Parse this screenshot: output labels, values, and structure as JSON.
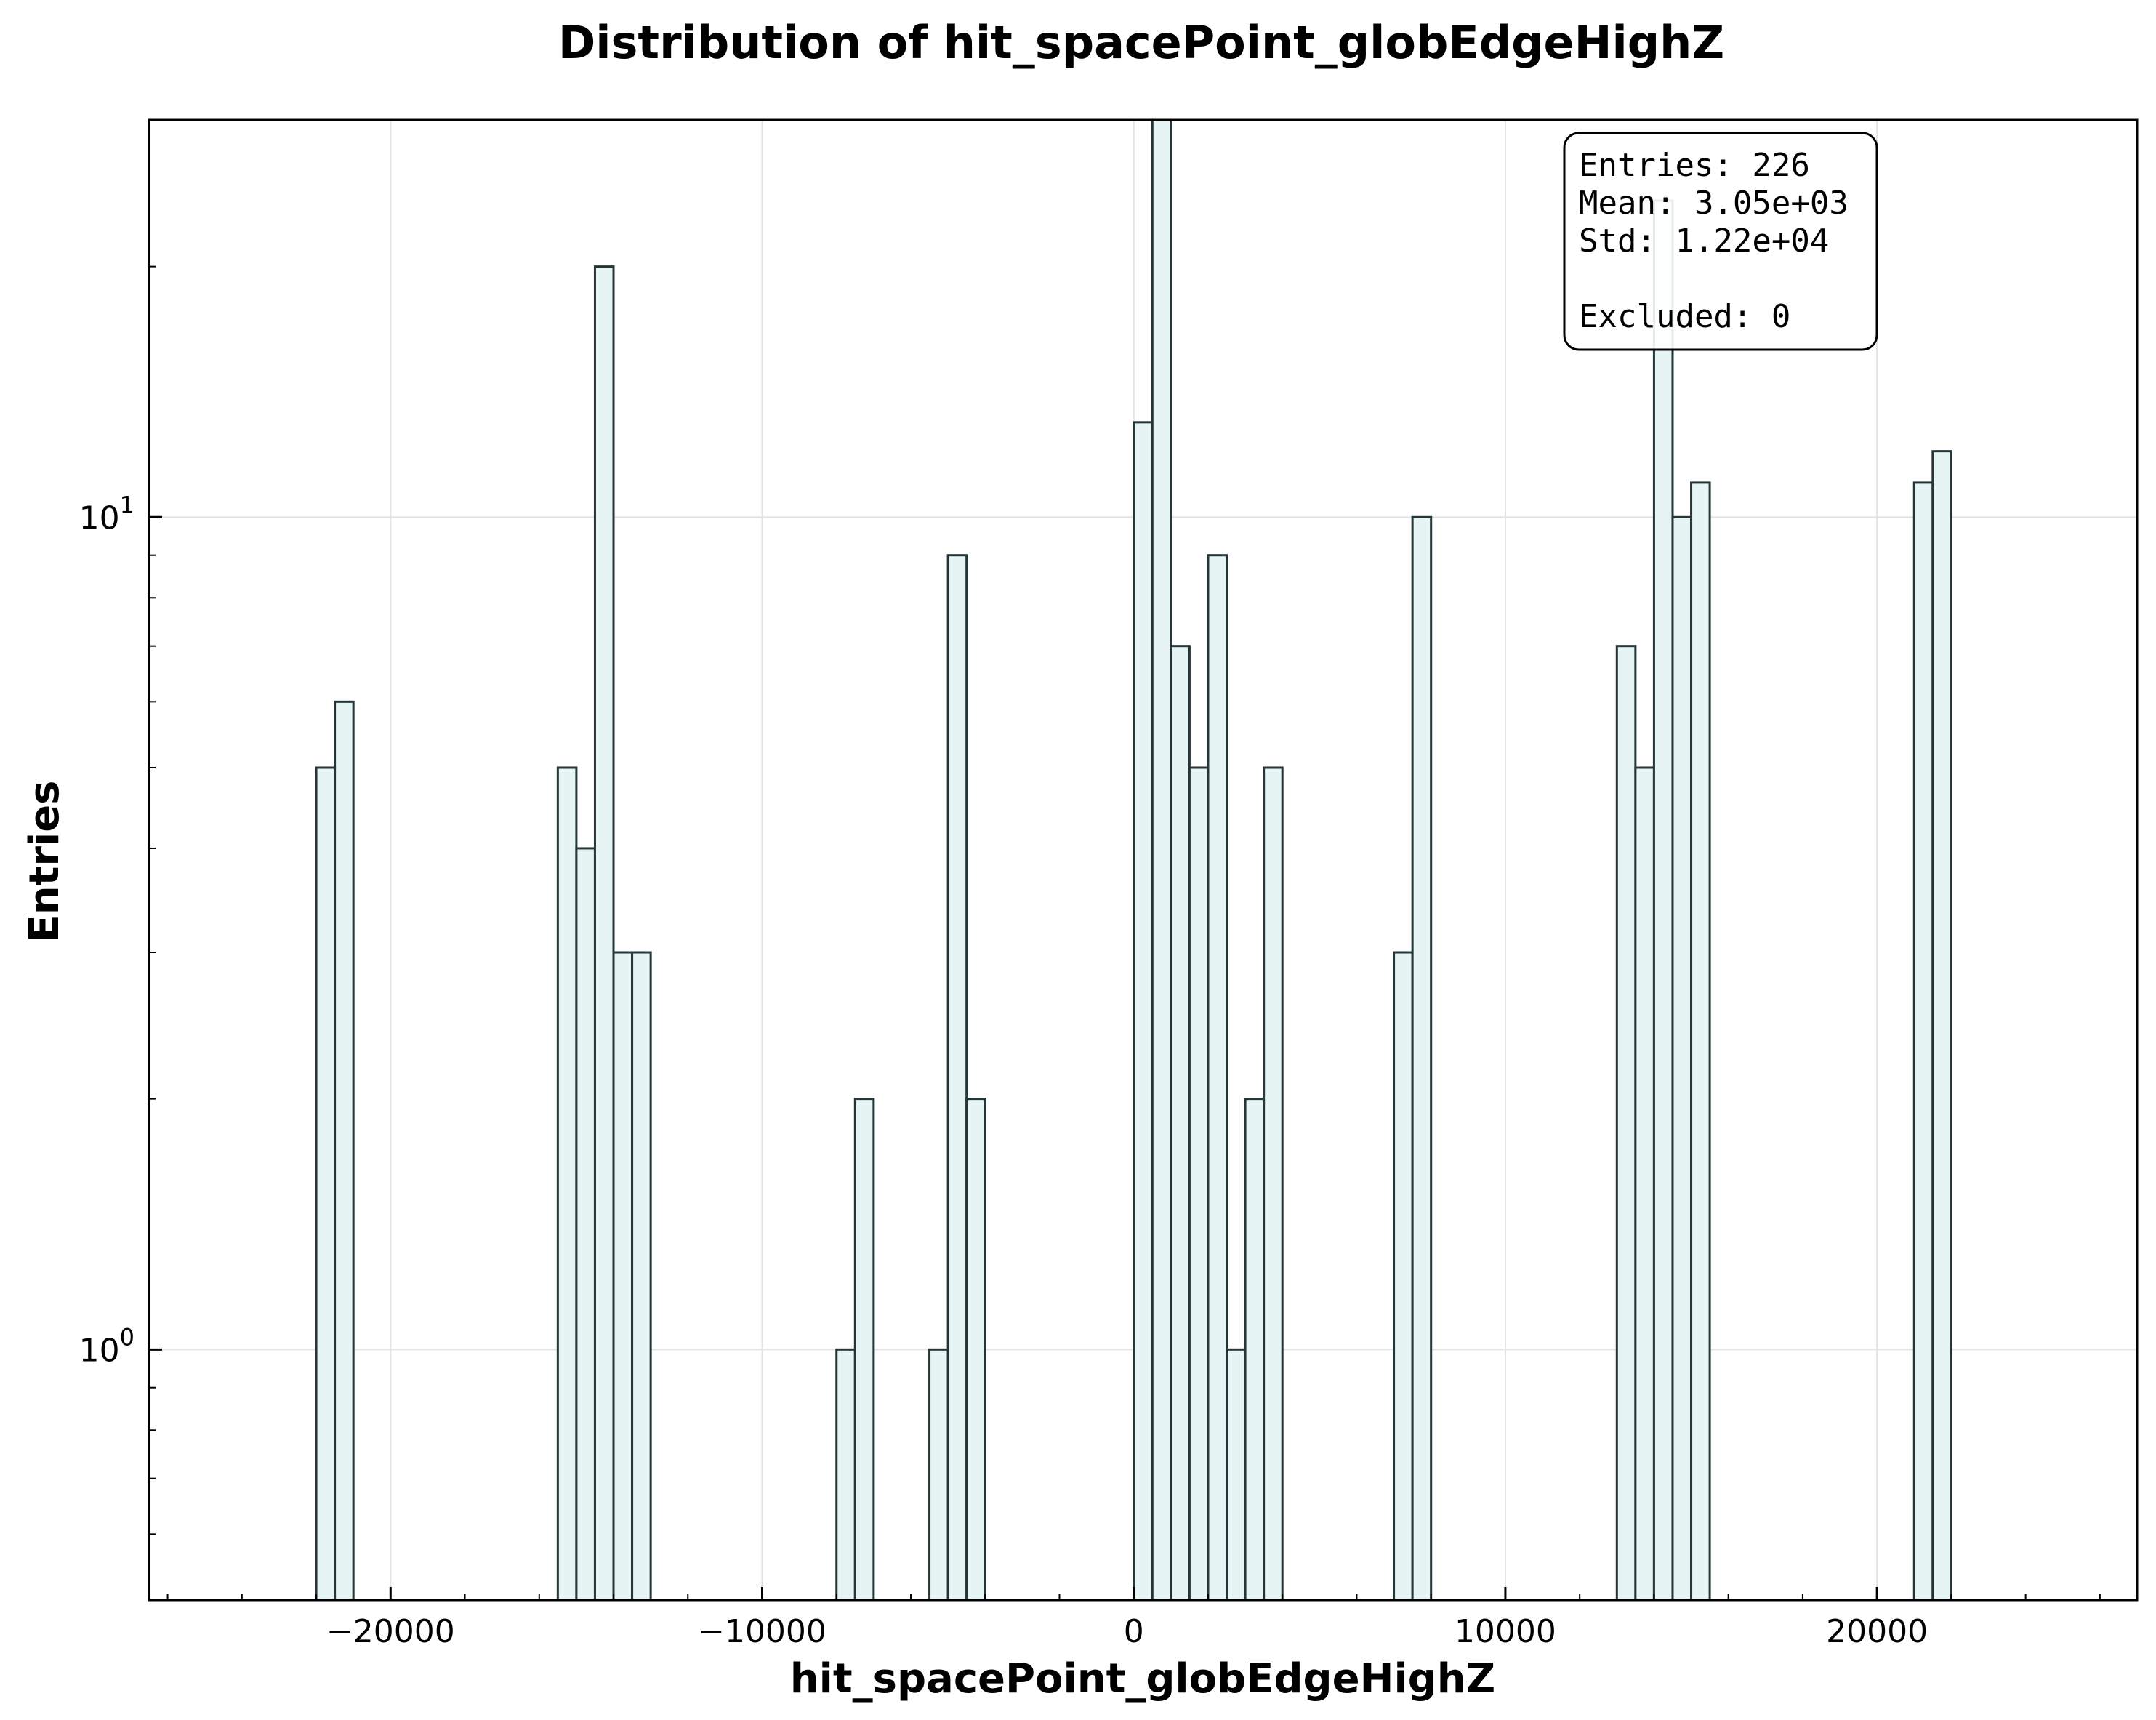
{
  "chart_data": {
    "type": "bar",
    "title": "Distribution of hit_spacePoint_globEdgeHighZ",
    "xlabel": "hit_spacePoint_globEdgeHighZ",
    "ylabel": "Entries",
    "y_scale": "log",
    "xlim": [
      -26500,
      27000
    ],
    "ylim": [
      0.5,
      30
    ],
    "x_ticks": [
      {
        "value": -20000,
        "label": "−20000"
      },
      {
        "value": -10000,
        "label": "−10000"
      },
      {
        "value": 0,
        "label": "0"
      },
      {
        "value": 10000,
        "label": "10000"
      },
      {
        "value": 20000,
        "label": "20000"
      }
    ],
    "y_ticks": [
      {
        "value": 1,
        "base": "10",
        "exp": "0"
      },
      {
        "value": 10,
        "base": "10",
        "exp": "1"
      }
    ],
    "grid": true,
    "bar_color": "#e6f4f4",
    "edge_color": "#243638",
    "bins": [
      {
        "x0": -22000,
        "x1": -21500,
        "count": 5
      },
      {
        "x0": -21500,
        "x1": -21000,
        "count": 6
      },
      {
        "x0": -15500,
        "x1": -15000,
        "count": 5
      },
      {
        "x0": -15000,
        "x1": -14500,
        "count": 4
      },
      {
        "x0": -14500,
        "x1": -14000,
        "count": 20
      },
      {
        "x0": -14000,
        "x1": -13500,
        "count": 3
      },
      {
        "x0": -13500,
        "x1": -13000,
        "count": 3
      },
      {
        "x0": -8000,
        "x1": -7500,
        "count": 1
      },
      {
        "x0": -7500,
        "x1": -7000,
        "count": 2
      },
      {
        "x0": -5500,
        "x1": -5000,
        "count": 1
      },
      {
        "x0": -5000,
        "x1": -4500,
        "count": 9
      },
      {
        "x0": -4500,
        "x1": -4000,
        "count": 2
      },
      {
        "x0": 0,
        "x1": 500,
        "count": 13
      },
      {
        "x0": 500,
        "x1": 1000,
        "count": 30
      },
      {
        "x0": 1000,
        "x1": 1500,
        "count": 7
      },
      {
        "x0": 1500,
        "x1": 2000,
        "count": 5
      },
      {
        "x0": 2000,
        "x1": 2500,
        "count": 9
      },
      {
        "x0": 2500,
        "x1": 3000,
        "count": 1
      },
      {
        "x0": 3000,
        "x1": 3500,
        "count": 2
      },
      {
        "x0": 3500,
        "x1": 4000,
        "count": 5
      },
      {
        "x0": 7000,
        "x1": 7500,
        "count": 3
      },
      {
        "x0": 7500,
        "x1": 8000,
        "count": 10
      },
      {
        "x0": 13000,
        "x1": 13500,
        "count": 7
      },
      {
        "x0": 13500,
        "x1": 14000,
        "count": 5
      },
      {
        "x0": 14000,
        "x1": 14500,
        "count": 24
      },
      {
        "x0": 14500,
        "x1": 15000,
        "count": 10
      },
      {
        "x0": 15000,
        "x1": 15500,
        "count": 11
      },
      {
        "x0": 21000,
        "x1": 21500,
        "count": 11
      },
      {
        "x0": 21500,
        "x1": 22000,
        "count": 12
      }
    ],
    "stats_box": {
      "placement": "top-right",
      "lines": [
        "Entries: 226",
        "Mean: 3.05e+03",
        "Std: 1.22e+04",
        "",
        "Excluded: 0"
      ]
    }
  }
}
